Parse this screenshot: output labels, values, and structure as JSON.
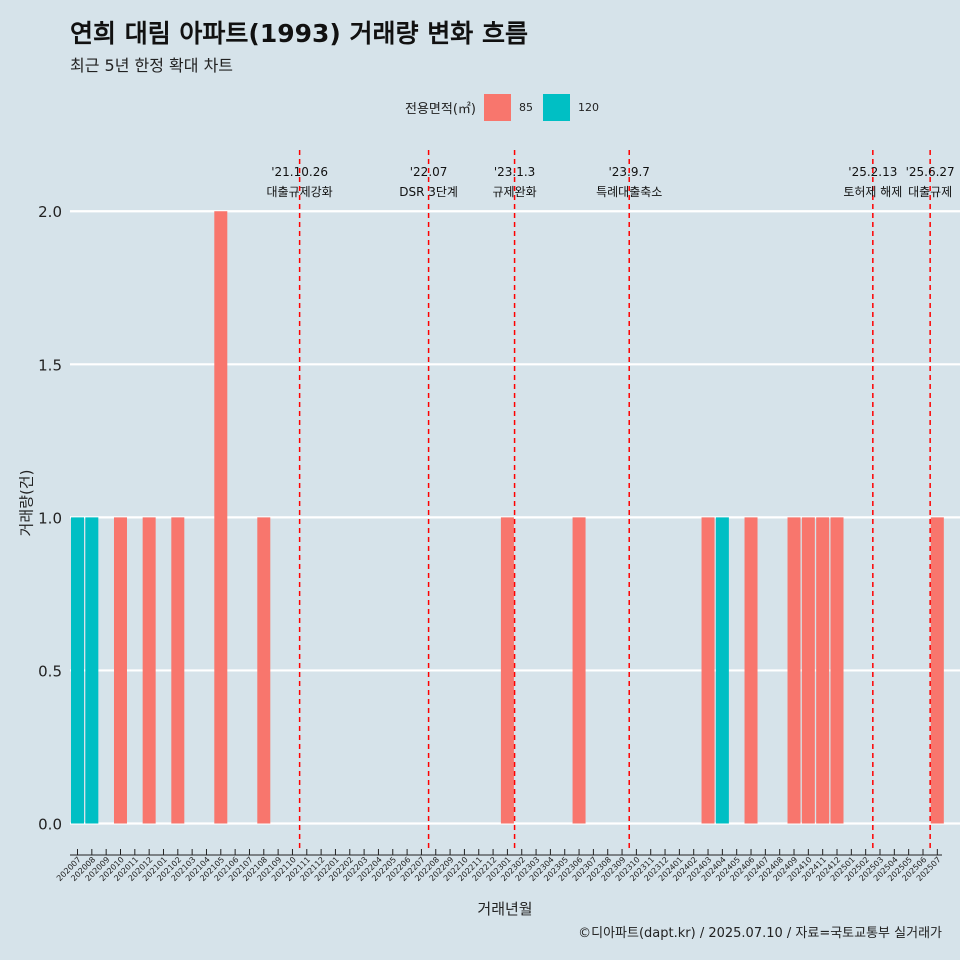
{
  "title": "연희 대림 아파트(1993) 거래량 변화 흐름",
  "subtitle": "최근 5년 한정 확대 차트",
  "caption": "©디아파트(dapt.kr) / 2025.07.10 / 자료=국토교통부 실거래가",
  "colors": {
    "s85": "#f8766d",
    "s120": "#00bfc4",
    "event_line": "#ff0000",
    "grid": "#ffffff",
    "background": "#d6e3ea"
  },
  "chart_data": {
    "type": "bar",
    "xlabel": "거래년월",
    "ylabel": "거래량(건)",
    "ylim": [
      -0.08,
      2.2
    ],
    "yticks": [
      0.0,
      0.5,
      1.0,
      1.5,
      2.0
    ],
    "ytick_labels": [
      "0.0",
      "0.5",
      "1.0",
      "1.5",
      "2.0"
    ],
    "legend": {
      "title": "전용면적(㎡)",
      "position": "top",
      "entries": [
        "85",
        "120"
      ]
    },
    "categories": [
      "202007",
      "202008",
      "202009",
      "202010",
      "202011",
      "202012",
      "202101",
      "202102",
      "202103",
      "202104",
      "202105",
      "202106",
      "202107",
      "202108",
      "202109",
      "202110",
      "202111",
      "202112",
      "202201",
      "202202",
      "202203",
      "202204",
      "202205",
      "202206",
      "202207",
      "202208",
      "202209",
      "202210",
      "202211",
      "202212",
      "202301",
      "202302",
      "202303",
      "202304",
      "202305",
      "202306",
      "202307",
      "202308",
      "202309",
      "202310",
      "202311",
      "202312",
      "202401",
      "202402",
      "202403",
      "202404",
      "202405",
      "202406",
      "202407",
      "202408",
      "202409",
      "202410",
      "202411",
      "202412",
      "202501",
      "202502",
      "202503",
      "202504",
      "202505",
      "202506",
      "202507"
    ],
    "series": [
      {
        "name": "85",
        "values": [
          0,
          0,
          0,
          1,
          0,
          1,
          0,
          1,
          0,
          0,
          2,
          0,
          0,
          1,
          0,
          0,
          0,
          0,
          0,
          0,
          0,
          0,
          0,
          0,
          0,
          0,
          0,
          0,
          0,
          0,
          1,
          0,
          0,
          0,
          0,
          1,
          0,
          0,
          0,
          0,
          0,
          0,
          0,
          0,
          1,
          0,
          0,
          1,
          0,
          0,
          1,
          1,
          1,
          1,
          0,
          0,
          0,
          0,
          0,
          0,
          1
        ]
      },
      {
        "name": "120",
        "values": [
          1,
          1,
          0,
          0,
          0,
          0,
          0,
          0,
          0,
          0,
          0,
          0,
          0,
          0,
          0,
          0,
          0,
          0,
          0,
          0,
          0,
          0,
          0,
          0,
          0,
          0,
          0,
          0,
          0,
          0,
          0,
          0,
          0,
          0,
          0,
          0,
          0,
          0,
          0,
          0,
          0,
          0,
          0,
          0,
          0,
          1,
          0,
          0,
          0,
          0,
          0,
          0,
          0,
          0,
          0,
          0,
          0,
          0,
          0,
          0,
          0
        ]
      }
    ],
    "events": [
      {
        "at": "202110",
        "offset": 0.5,
        "date": "'21.10.26",
        "label": "대출규제강화"
      },
      {
        "at": "202207",
        "offset": 0.5,
        "date": "'22.07",
        "label": "DSR 3단계"
      },
      {
        "at": "202301",
        "offset": 0.5,
        "date": "'23.1.3",
        "label": "규제완화"
      },
      {
        "at": "202309",
        "offset": 0.5,
        "date": "'23.9.7",
        "label": "특례대출축소"
      },
      {
        "at": "202502",
        "offset": 0.5,
        "date": "'25.2.13",
        "label": "토허제 해제"
      },
      {
        "at": "202506",
        "offset": 0.5,
        "date": "'25.6.27",
        "label": "대출규제"
      }
    ]
  }
}
